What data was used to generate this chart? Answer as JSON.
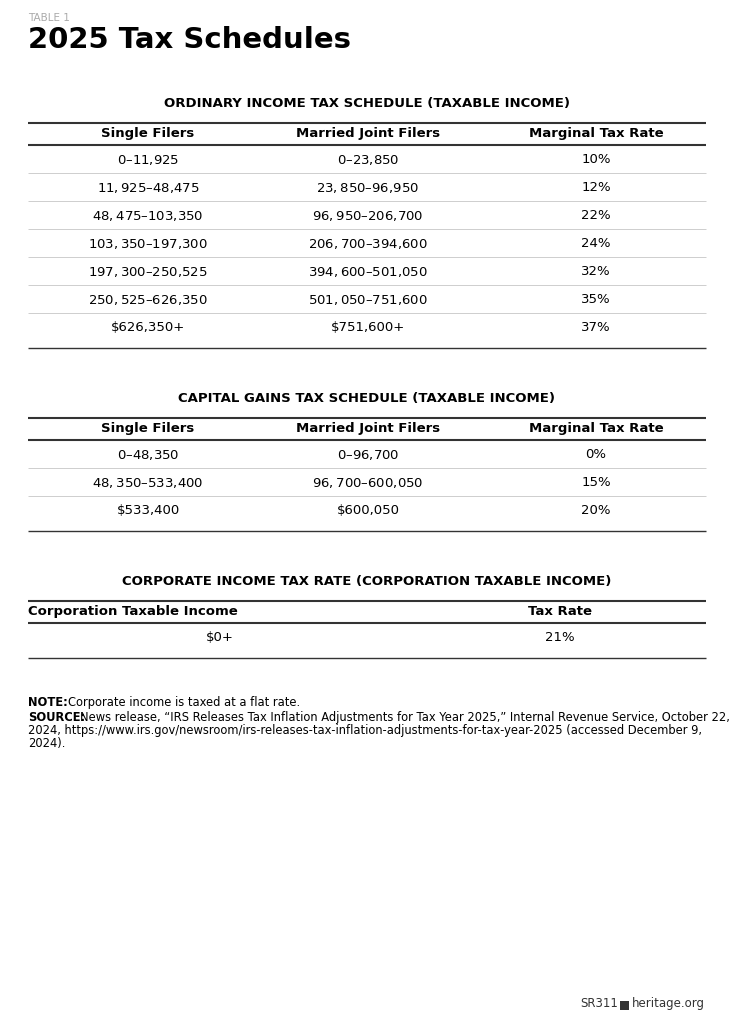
{
  "table_label": "TABLE 1",
  "title": "2025 Tax Schedules",
  "section1_title": "ORDINARY INCOME TAX SCHEDULE (TAXABLE INCOME)",
  "section1_headers": [
    "Single Filers",
    "Married Joint Filers",
    "Marginal Tax Rate"
  ],
  "section1_rows": [
    [
      "$0–$11,925",
      "$0–$23,850",
      "10%"
    ],
    [
      "$11,925–$48,475",
      "$23,850–$96,950",
      "12%"
    ],
    [
      "$48,475–$103,350",
      "$96,950–$206,700",
      "22%"
    ],
    [
      "$103,350–$197,300",
      "$206,700–$394,600",
      "24%"
    ],
    [
      "$197,300–$250,525",
      "$394,600–$501,050",
      "32%"
    ],
    [
      "$250,525–$626,350",
      "$501,050–$751,600",
      "35%"
    ],
    [
      "$626,350+",
      "$751,600+",
      "37%"
    ]
  ],
  "section2_title": "CAPITAL GAINS TAX SCHEDULE (TAXABLE INCOME)",
  "section2_headers": [
    "Single Filers",
    "Married Joint Filers",
    "Marginal Tax Rate"
  ],
  "section2_rows": [
    [
      "$0–$48,350",
      "$0–$96,700",
      "0%"
    ],
    [
      "$48,350–$533,400",
      "$96,700–$600,050",
      "15%"
    ],
    [
      "$533,400",
      "$600,050",
      "20%"
    ]
  ],
  "section3_title": "CORPORATE INCOME TAX RATE (CORPORATION TAXABLE INCOME)",
  "section3_headers": [
    "Corporation Taxable Income",
    "Tax Rate"
  ],
  "section3_rows": [
    [
      "$0+",
      "21%"
    ]
  ],
  "note_label": "NOTE:",
  "note_text": "Corporate income is taxed at a flat rate.",
  "source_label": "SOURCE:",
  "source_line1": "News release, “IRS Releases Tax Inflation Adjustments for Tax Year 2025,” Internal Revenue Service, October 22,",
  "source_line2": "2024, https://www.irs.gov/newsroom/irs-releases-tax-inflation-adjustments-for-tax-year-2025 (accessed December 9,",
  "source_line3": "2024).",
  "footer_sr": "SR311",
  "footer_site": "heritage.org",
  "bg_color": "#ffffff",
  "text_color": "#1a1a1a",
  "gray_color": "#777777",
  "label_color": "#aaaaaa"
}
